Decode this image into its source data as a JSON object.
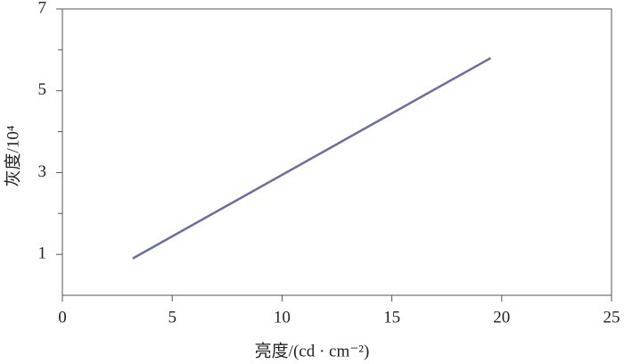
{
  "chart_data": {
    "type": "line",
    "x_label": "亮度/(cd · cm⁻²)",
    "y_label": "灰度/10⁴",
    "x": [
      3.2,
      19.5
    ],
    "series": [
      {
        "color": "#6b6e9e",
        "values": [
          0.9,
          5.8
        ]
      }
    ],
    "xlim": [
      0,
      25
    ],
    "xticks": [
      0,
      5,
      10,
      15,
      20,
      25
    ],
    "ylim": [
      0,
      7
    ],
    "yticks": [
      1,
      3,
      5,
      7
    ],
    "yminorticks": [
      2,
      4,
      6
    ]
  }
}
